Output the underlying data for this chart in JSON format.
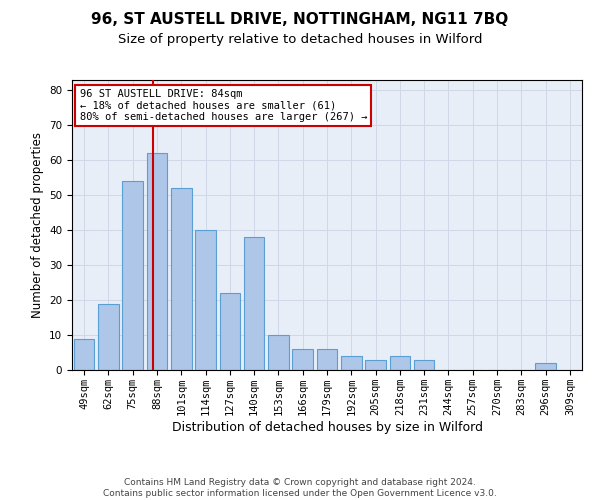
{
  "title": "96, ST AUSTELL DRIVE, NOTTINGHAM, NG11 7BQ",
  "subtitle": "Size of property relative to detached houses in Wilford",
  "xlabel": "Distribution of detached houses by size in Wilford",
  "ylabel": "Number of detached properties",
  "categories": [
    "49sqm",
    "62sqm",
    "75sqm",
    "88sqm",
    "101sqm",
    "114sqm",
    "127sqm",
    "140sqm",
    "153sqm",
    "166sqm",
    "179sqm",
    "192sqm",
    "205sqm",
    "218sqm",
    "231sqm",
    "244sqm",
    "257sqm",
    "270sqm",
    "283sqm",
    "296sqm",
    "309sqm"
  ],
  "values": [
    9,
    19,
    54,
    62,
    52,
    40,
    22,
    38,
    10,
    6,
    6,
    4,
    3,
    4,
    3,
    0,
    0,
    0,
    0,
    2,
    0
  ],
  "bar_color": "#aec6e8",
  "bar_edge_color": "#5a9fd4",
  "vline_x_index": 2.85,
  "vline_color": "#cc0000",
  "annotation_text": "96 ST AUSTELL DRIVE: 84sqm\n← 18% of detached houses are smaller (61)\n80% of semi-detached houses are larger (267) →",
  "annotation_box_color": "white",
  "annotation_box_edge_color": "#cc0000",
  "ylim": [
    0,
    83
  ],
  "yticks": [
    0,
    10,
    20,
    30,
    40,
    50,
    60,
    70,
    80
  ],
  "grid_color": "#d0d8e8",
  "background_color": "#e8eef8",
  "footer_line1": "Contains HM Land Registry data © Crown copyright and database right 2024.",
  "footer_line2": "Contains public sector information licensed under the Open Government Licence v3.0.",
  "title_fontsize": 11,
  "subtitle_fontsize": 9.5,
  "xlabel_fontsize": 9,
  "ylabel_fontsize": 8.5,
  "tick_fontsize": 7.5,
  "annotation_fontsize": 7.5,
  "footer_fontsize": 6.5
}
